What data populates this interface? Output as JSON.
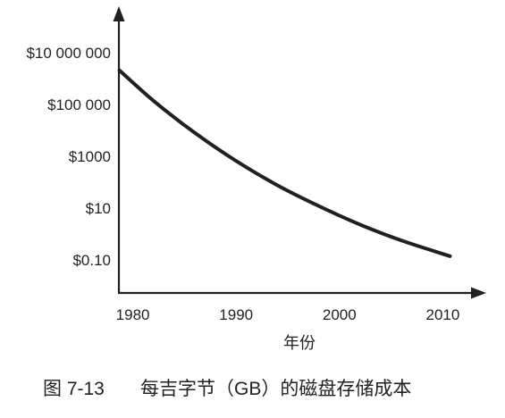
{
  "chart_data": {
    "type": "line",
    "xlabel": "年份",
    "y_scale": "log",
    "xlim": [
      1978.7,
      2013.9
    ],
    "ylim": [
      0.005,
      500000000
    ],
    "grid": false,
    "legend": "none",
    "line_color": "#231f20",
    "axis_color": "#231f20",
    "x_ticks": [
      {
        "value": 1980,
        "label": "1980"
      },
      {
        "value": 1990,
        "label": "1990"
      },
      {
        "value": 2000,
        "label": "2000"
      },
      {
        "value": 2010,
        "label": "2010"
      }
    ],
    "y_ticks": [
      {
        "value": 10000000,
        "label": "$10 000 000"
      },
      {
        "value": 100000,
        "label": "$100 000"
      },
      {
        "value": 1000,
        "label": "$1000"
      },
      {
        "value": 10,
        "label": "$10"
      },
      {
        "value": 0.1,
        "label": "$0.10"
      }
    ],
    "series": [
      {
        "x": [
          1978.7,
          1982,
          1986,
          1990,
          1994,
          1998,
          2002,
          2006,
          2010.7
        ],
        "y": [
          2100000,
          140000,
          8000,
          660,
          76,
          12,
          2.3,
          0.56,
          0.14
        ]
      }
    ],
    "caption": {
      "figure_number": "图 7-13",
      "text": "每吉字节（GB）的磁盘存储成本"
    }
  }
}
